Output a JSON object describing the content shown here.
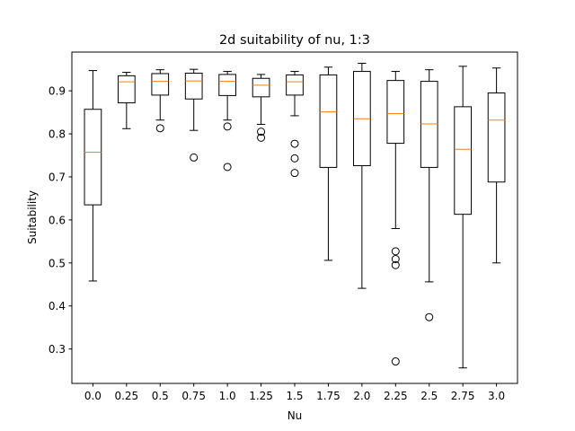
{
  "chart_data": {
    "type": "box",
    "title": "2d suitability of nu, 1:3",
    "xlabel": "Nu",
    "ylabel": "Suitability",
    "ylim": [
      0.22,
      0.99
    ],
    "yticks": [
      0.3,
      0.4,
      0.5,
      0.6,
      0.7,
      0.8,
      0.9
    ],
    "ytick_labels": [
      "0.3",
      "0.4",
      "0.5",
      "0.6",
      "0.7",
      "0.8",
      "0.9"
    ],
    "grid": false,
    "colors": {
      "box": "#000000",
      "median": "#ff7f0e",
      "flier": "#000000",
      "background": "#ffffff"
    },
    "categories": [
      "0.0",
      "0.25",
      "0.5",
      "0.75",
      "1.0",
      "1.25",
      "1.5",
      "1.75",
      "2.0",
      "2.25",
      "2.5",
      "2.75",
      "3.0"
    ],
    "boxes": [
      {
        "whislo": 0.458,
        "q1": 0.635,
        "med": 0.757,
        "q3": 0.857,
        "whishi": 0.947,
        "fliers": []
      },
      {
        "whislo": 0.812,
        "q1": 0.872,
        "med": 0.921,
        "q3": 0.935,
        "whishi": 0.943,
        "fliers": []
      },
      {
        "whislo": 0.832,
        "q1": 0.89,
        "med": 0.922,
        "q3": 0.94,
        "whishi": 0.949,
        "fliers": [
          0.813
        ]
      },
      {
        "whislo": 0.808,
        "q1": 0.881,
        "med": 0.923,
        "q3": 0.941,
        "whishi": 0.95,
        "fliers": [
          0.745
        ]
      },
      {
        "whislo": 0.832,
        "q1": 0.889,
        "med": 0.922,
        "q3": 0.938,
        "whishi": 0.945,
        "fliers": [
          0.817,
          0.723
        ]
      },
      {
        "whislo": 0.822,
        "q1": 0.886,
        "med": 0.913,
        "q3": 0.929,
        "whishi": 0.938,
        "fliers": [
          0.805,
          0.791
        ]
      },
      {
        "whislo": 0.842,
        "q1": 0.89,
        "med": 0.921,
        "q3": 0.937,
        "whishi": 0.945,
        "fliers": [
          0.777,
          0.743,
          0.709
        ]
      },
      {
        "whislo": 0.506,
        "q1": 0.722,
        "med": 0.851,
        "q3": 0.937,
        "whishi": 0.955,
        "fliers": []
      },
      {
        "whislo": 0.441,
        "q1": 0.726,
        "med": 0.835,
        "q3": 0.945,
        "whishi": 0.964,
        "fliers": []
      },
      {
        "whislo": 0.58,
        "q1": 0.778,
        "med": 0.847,
        "q3": 0.924,
        "whishi": 0.945,
        "fliers": [
          0.527,
          0.509,
          0.495,
          0.271
        ]
      },
      {
        "whislo": 0.456,
        "q1": 0.722,
        "med": 0.823,
        "q3": 0.922,
        "whishi": 0.949,
        "fliers": [
          0.374
        ]
      },
      {
        "whislo": 0.256,
        "q1": 0.613,
        "med": 0.764,
        "q3": 0.863,
        "whishi": 0.957,
        "fliers": []
      },
      {
        "whislo": 0.5,
        "q1": 0.688,
        "med": 0.832,
        "q3": 0.895,
        "whishi": 0.953,
        "fliers": []
      }
    ]
  }
}
